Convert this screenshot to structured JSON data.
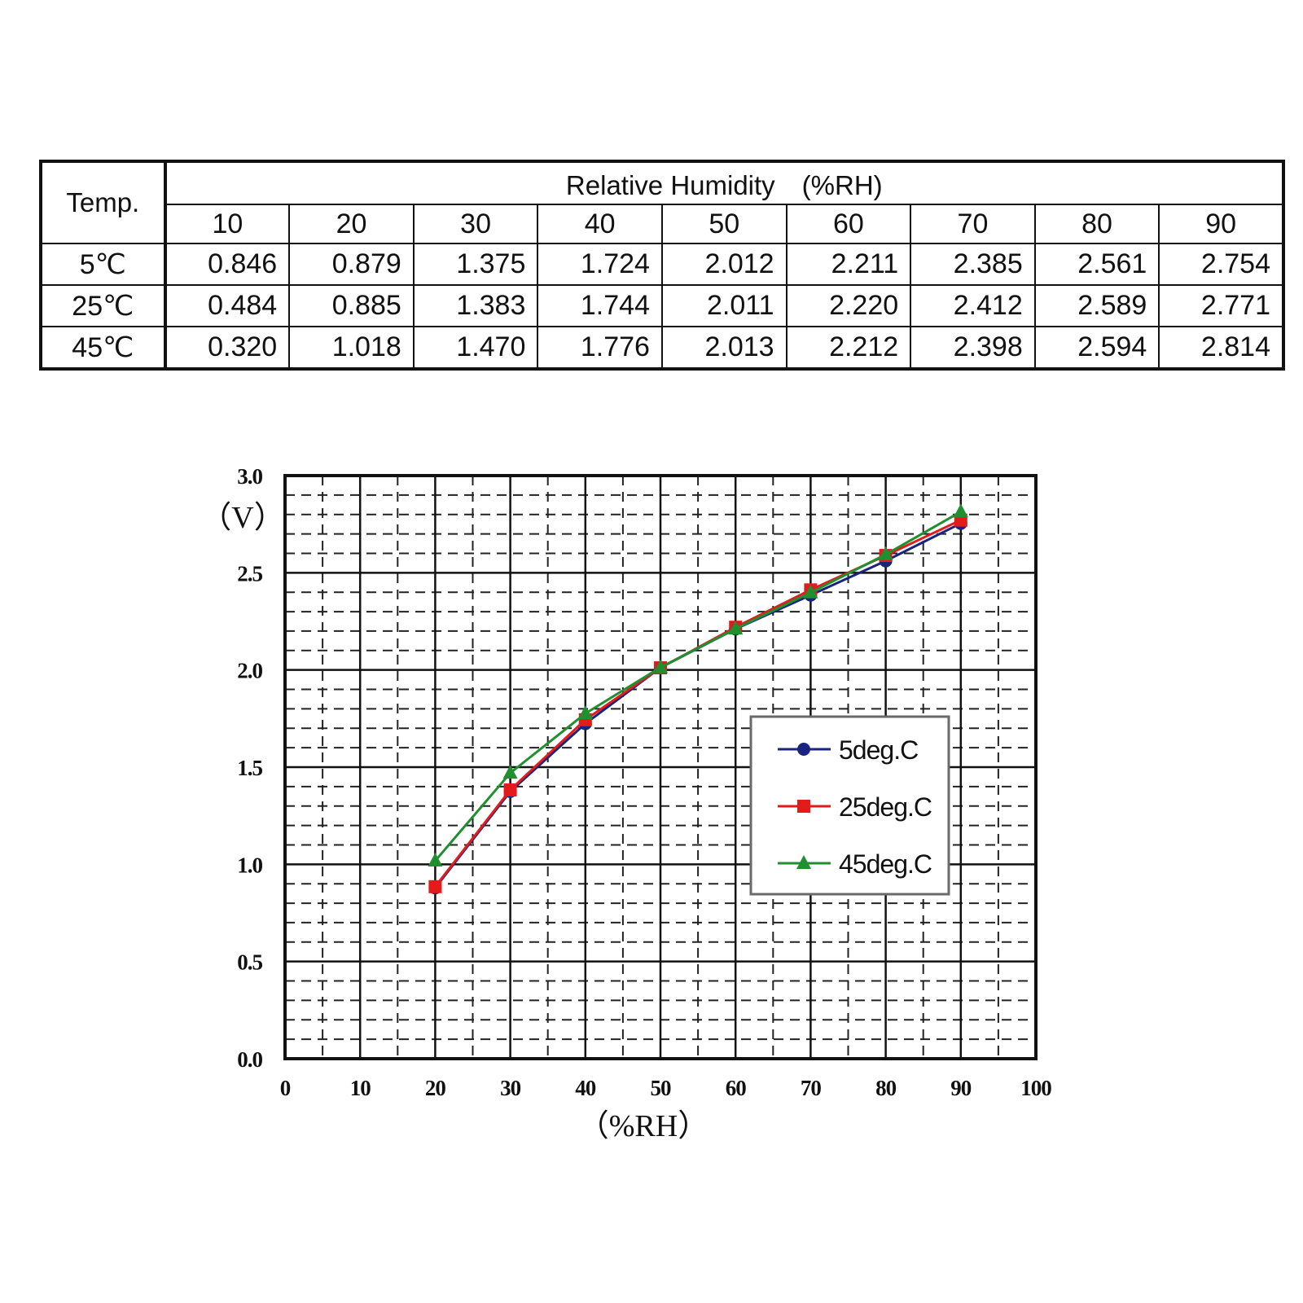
{
  "table": {
    "temp_header": "Temp.",
    "rh_header": "Relative Humidity　(%RH)",
    "columns": [
      "10",
      "20",
      "30",
      "40",
      "50",
      "60",
      "70",
      "80",
      "90"
    ],
    "rows": [
      {
        "label": "5℃",
        "values": [
          "0.846",
          "0.879",
          "1.375",
          "1.724",
          "2.012",
          "2.211",
          "2.385",
          "2.561",
          "2.754"
        ]
      },
      {
        "label": "25℃",
        "values": [
          "0.484",
          "0.885",
          "1.383",
          "1.744",
          "2.011",
          "2.220",
          "2.412",
          "2.589",
          "2.771"
        ]
      },
      {
        "label": "45℃",
        "values": [
          "0.320",
          "1.018",
          "1.470",
          "1.776",
          "2.013",
          "2.212",
          "2.398",
          "2.594",
          "2.814"
        ]
      }
    ]
  },
  "chart_data": {
    "type": "line",
    "ylabel": "（V）",
    "xlabel": "（%RH）",
    "xlim": [
      0,
      100
    ],
    "ylim": [
      0,
      3.0
    ],
    "x_ticks": [
      "0",
      "10",
      "20",
      "30",
      "40",
      "50",
      "60",
      "70",
      "80",
      "90",
      "100"
    ],
    "y_ticks": [
      "0.0",
      "0.5",
      "1.0",
      "1.5",
      "2.0",
      "2.5",
      "3.0"
    ],
    "grid": "on (solid major, dashed minor)",
    "legend_position": "right, middle",
    "x": [
      20,
      30,
      40,
      50,
      60,
      70,
      80,
      90
    ],
    "series": [
      {
        "name": "5deg.C",
        "color": "#1a237e",
        "marker": "circle",
        "values": [
          0.879,
          1.375,
          1.724,
          2.012,
          2.211,
          2.385,
          2.561,
          2.754
        ]
      },
      {
        "name": "25deg.C",
        "color": "#e31b1b",
        "marker": "square",
        "values": [
          0.885,
          1.383,
          1.744,
          2.011,
          2.22,
          2.412,
          2.589,
          2.771
        ]
      },
      {
        "name": "45deg.C",
        "color": "#1f8f2f",
        "marker": "triangle",
        "values": [
          1.018,
          1.47,
          1.776,
          2.013,
          2.212,
          2.398,
          2.594,
          2.814
        ]
      }
    ]
  }
}
